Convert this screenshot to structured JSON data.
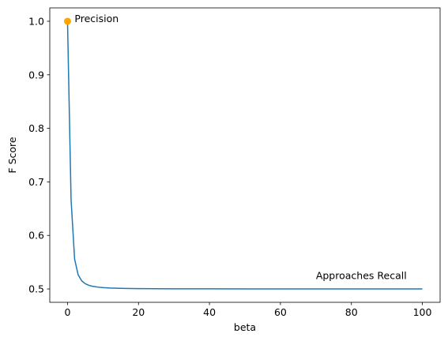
{
  "chart_data": {
    "type": "line",
    "xlabel": "beta",
    "ylabel": "F Score",
    "xlim": [
      -5,
      105
    ],
    "ylim": [
      0.475,
      1.025
    ],
    "xticks": [
      0,
      20,
      40,
      60,
      80,
      100
    ],
    "xtick_labels": [
      "0",
      "20",
      "40",
      "60",
      "80",
      "100"
    ],
    "yticks": [
      0.5,
      0.6,
      0.7,
      0.8,
      0.9,
      1.0
    ],
    "ytick_labels": [
      "0.5",
      "0.6",
      "0.7",
      "0.8",
      "0.9",
      "1.0"
    ],
    "grid": false,
    "series": [
      {
        "color": "#1f77b4",
        "x": [
          0,
          1,
          2,
          3,
          4,
          5,
          6,
          7,
          8,
          9,
          10,
          12,
          14,
          16,
          18,
          20,
          25,
          30,
          40,
          50,
          60,
          70,
          80,
          90,
          100
        ],
        "y": [
          1.0,
          0.6667,
          0.5556,
          0.5263,
          0.5152,
          0.5098,
          0.5068,
          0.5051,
          0.5039,
          0.5031,
          0.5025,
          0.5017,
          0.5013,
          0.501,
          0.5008,
          0.5006,
          0.5004,
          0.5003,
          0.5002,
          0.5001,
          0.5001,
          0.5001,
          0.5001,
          0.5001,
          0.5
        ]
      }
    ],
    "highlight_point": {
      "x": 0,
      "y": 1.0,
      "color": "#ffa500"
    },
    "annotations": [
      {
        "text": "Precision",
        "x": 2,
        "y": 1.0
      },
      {
        "text": "Approaches Recall",
        "x": 70,
        "y": 0.52
      }
    ]
  }
}
